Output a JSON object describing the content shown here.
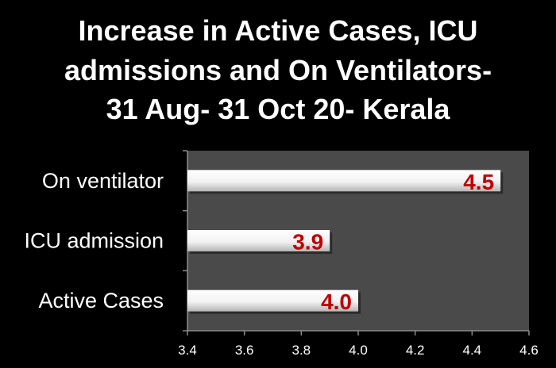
{
  "chart_data": {
    "type": "bar",
    "orientation": "horizontal",
    "title_lines": [
      "Increase in Active Cases, ICU",
      "admissions and On Ventilators-",
      "31 Aug- 31 Oct 20- Kerala"
    ],
    "categories": [
      "Active Cases",
      "ICU admission",
      "On ventilator"
    ],
    "values": [
      4.0,
      3.9,
      4.5
    ],
    "data_labels": [
      "4.0",
      "3.9",
      "4.5"
    ],
    "xlim": [
      3.4,
      4.6
    ],
    "ticks": [
      "3.4",
      "3.6",
      "3.8",
      "4.0",
      "4.2",
      "4.4",
      "4.6"
    ],
    "grid": false,
    "legend": "none",
    "colors": {
      "background": "#000000",
      "plot_area": "#4a4a4a",
      "bar_light": "#ffffff",
      "bar_dark": "#b5b5b5",
      "data_label": "#c00000",
      "text": "#ffffff",
      "axis": "#8c8c8c"
    }
  }
}
